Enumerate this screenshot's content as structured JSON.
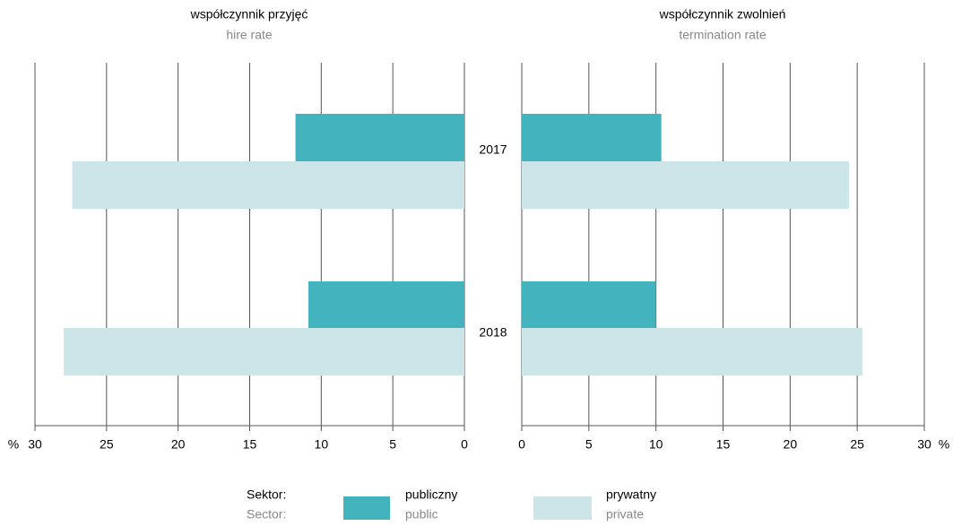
{
  "chart_data": [
    {
      "type": "bar",
      "title": "współczynnik przyjęć",
      "subtitle": "hire rate",
      "categories": [
        "2017",
        "2018"
      ],
      "series": [
        {
          "name": "publiczny",
          "name_en": "public",
          "color": "#43b3bd",
          "values": [
            11.8,
            10.9
          ]
        },
        {
          "name": "prywatny",
          "name_en": "private",
          "color": "#cce5e9",
          "values": [
            27.4,
            28.0
          ]
        }
      ],
      "xlim": [
        30,
        0
      ],
      "xticks": [
        30,
        25,
        20,
        15,
        10,
        5,
        0
      ],
      "xunit": "%",
      "grid": true
    },
    {
      "type": "bar",
      "title": "współczynnik zwolnień",
      "subtitle": "termination rate",
      "series": [
        {
          "color": "#43b3bd",
          "values": [
            10.4,
            10.0
          ]
        },
        {
          "color": "#cce5e9",
          "values": [
            24.4,
            25.4
          ]
        }
      ],
      "xlim": [
        0,
        30
      ],
      "xticks": [
        0,
        5,
        10,
        15,
        20,
        25,
        30
      ],
      "xunit": "%",
      "grid": true
    }
  ],
  "legend_title": "Sektor:",
  "legend_subtitle": "Sector:"
}
